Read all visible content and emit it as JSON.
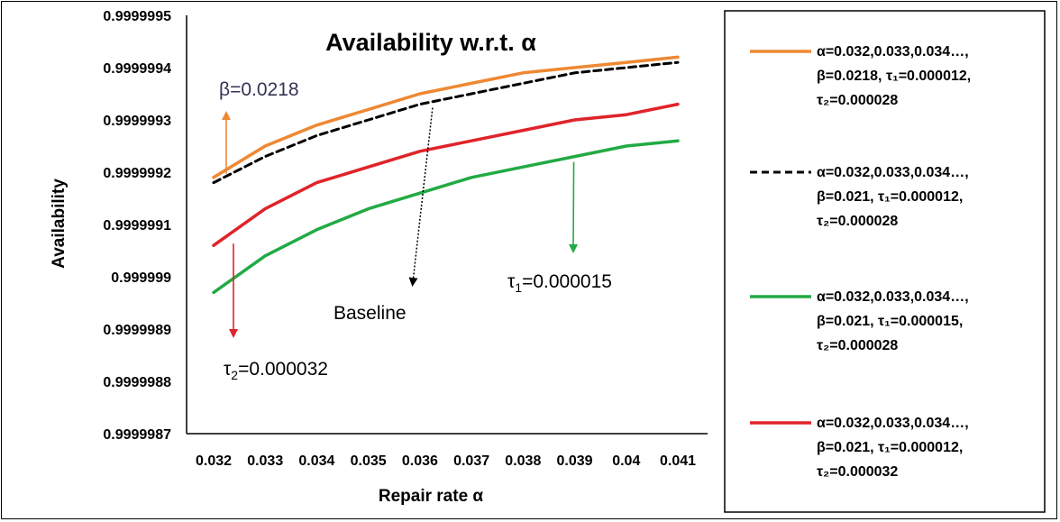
{
  "chart_data": {
    "type": "line",
    "title": "Availability w.r.t. α",
    "xlabel": "Repair rate α",
    "ylabel": "Availability",
    "x": [
      0.032,
      0.033,
      0.034,
      0.035,
      0.036,
      0.037,
      0.038,
      0.039,
      0.04,
      0.041
    ],
    "x_tick_labels": [
      "0.032",
      "0.033",
      "0.034",
      "0.035",
      "0.036",
      "0.037",
      "0.038",
      "0.039",
      "0.04",
      "0.041"
    ],
    "y_tick_labels": [
      "0.9999995",
      "0.9999994",
      "0.9999993",
      "0.9999992",
      "0.9999991",
      "0.999999",
      "0.9999989",
      "0.9999988",
      "0.9999987"
    ],
    "ylim": [
      0.9999987,
      0.9999995
    ],
    "grid": false,
    "legend_position": "right",
    "series": [
      {
        "key": "beta",
        "color": "#EE8833",
        "dash": "solid",
        "legend_lines": [
          "α=0.032,0.033,0.034…,",
          "β=0.0218, τ₁=0.000012,",
          "τ₂=0.000028"
        ],
        "values": [
          0.99999919,
          0.99999925,
          0.99999929,
          0.99999932,
          0.99999935,
          0.99999937,
          0.99999939,
          0.9999994,
          0.99999941,
          0.99999942
        ]
      },
      {
        "key": "baseline",
        "color": "#000000",
        "dash": "dashed",
        "legend_lines": [
          "α=0.032,0.033,0.034…,",
          "β=0.021, τ₁=0.000012,",
          "τ₂=0.000028"
        ],
        "values": [
          0.99999918,
          0.99999923,
          0.99999927,
          0.9999993,
          0.99999933,
          0.99999935,
          0.99999937,
          0.99999939,
          0.9999994,
          0.99999941
        ]
      },
      {
        "key": "tau1",
        "color": "#22AA44",
        "dash": "solid",
        "legend_lines": [
          "α=0.032,0.033,0.034…,",
          "β=0.021, τ₁=0.000015,",
          "τ₂=0.000028"
        ],
        "values": [
          0.99999897,
          0.99999904,
          0.99999909,
          0.99999913,
          0.99999916,
          0.99999919,
          0.99999921,
          0.99999923,
          0.99999925,
          0.99999926
        ]
      },
      {
        "key": "tau2",
        "color": "#E0232A",
        "dash": "solid",
        "legend_lines": [
          "α=0.032,0.033,0.034…,",
          "β=0.021, τ₁=0.000012,",
          "τ₂=0.000032"
        ],
        "values": [
          0.99999906,
          0.99999913,
          0.99999918,
          0.99999921,
          0.99999924,
          0.99999926,
          0.99999928,
          0.9999993,
          0.99999931,
          0.99999933
        ]
      }
    ],
    "annotations": [
      {
        "key": "beta",
        "text": "β=0.0218",
        "color": "#EE8833",
        "label_color": "#333355"
      },
      {
        "key": "baseline",
        "text": "Baseline",
        "color": "#000000",
        "label_color": "#000000"
      },
      {
        "key": "tau1",
        "text": "τ",
        "sub": "1",
        "rest": "=0.000015",
        "color": "#22AA44",
        "label_color": "#000000"
      },
      {
        "key": "tau2",
        "text": "τ",
        "sub": "2",
        "rest": "=0.000032",
        "color": "#E0232A",
        "label_color": "#000000"
      }
    ]
  }
}
